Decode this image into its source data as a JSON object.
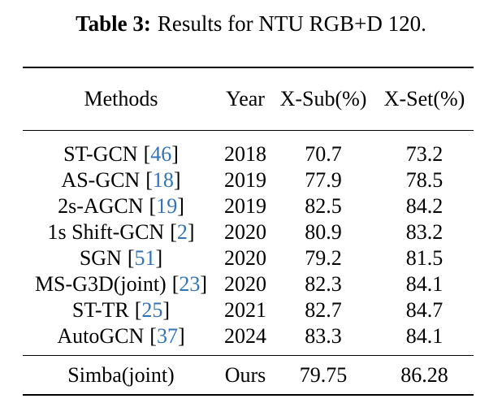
{
  "caption": {
    "label": "Table 3:",
    "text": "Results for NTU RGB+D 120."
  },
  "table": {
    "headers": {
      "methods": "Methods",
      "year": "Year",
      "xsub": "X-Sub(%)",
      "xset": "X-Set(%)"
    },
    "rows": [
      {
        "method": "ST-GCN",
        "cite": "46",
        "year": "2018",
        "xsub": "70.7",
        "xset": "73.2"
      },
      {
        "method": "AS-GCN",
        "cite": "18",
        "year": "2019",
        "xsub": "77.9",
        "xset": "78.5"
      },
      {
        "method": "2s-AGCN",
        "cite": "19",
        "year": "2019",
        "xsub": "82.5",
        "xset": "84.2"
      },
      {
        "method": "1s Shift-GCN",
        "cite": "2",
        "year": "2020",
        "xsub": "80.9",
        "xset": "83.2"
      },
      {
        "method": "SGN",
        "cite": "51",
        "year": "2020",
        "xsub": "79.2",
        "xset": "81.5"
      },
      {
        "method": "MS-G3D(joint)",
        "cite": "23",
        "year": "2020",
        "xsub": "82.3",
        "xset": "84.1"
      },
      {
        "method": "ST-TR",
        "cite": "25",
        "year": "2021",
        "xsub": "82.7",
        "xset": "84.7"
      },
      {
        "method": "AutoGCN",
        "cite": "37",
        "year": "2024",
        "xsub": "83.3",
        "xset": "84.1"
      }
    ],
    "ours_row": {
      "method": "Simba(joint)",
      "year": "Ours",
      "xsub": "79.75",
      "xset": "86.28"
    }
  },
  "colors": {
    "citation_link": "#3273b8",
    "text": "#000000",
    "rule": "#000000",
    "background": "#ffffff"
  }
}
